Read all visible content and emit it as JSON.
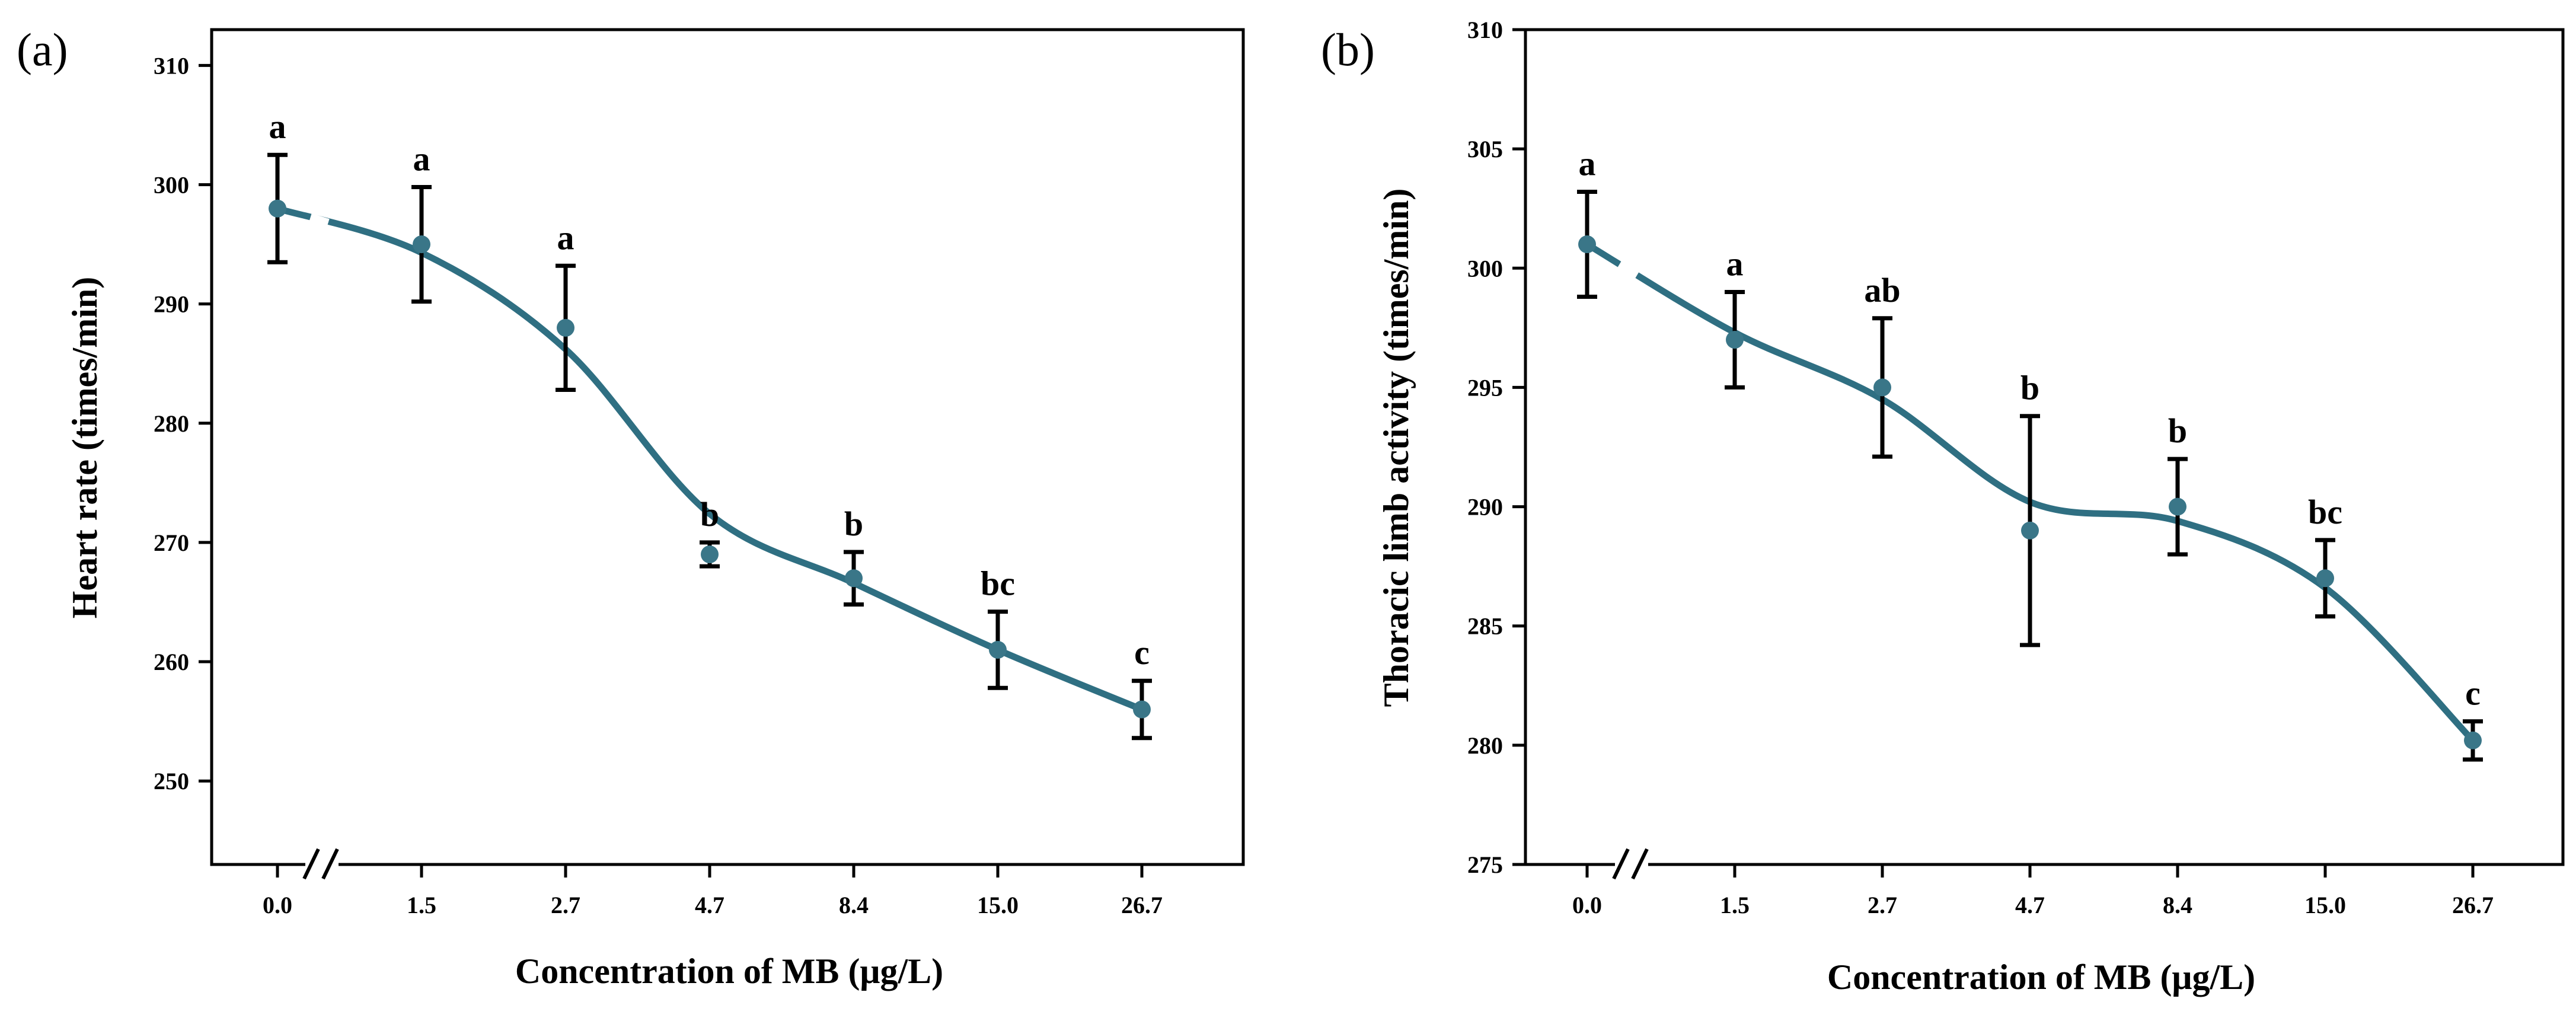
{
  "figure": {
    "panels": [
      {
        "id": "a",
        "label": "(a)"
      },
      {
        "id": "b",
        "label": "(b)"
      }
    ]
  },
  "chart_data": [
    {
      "type": "line",
      "panel_label": "(a)",
      "title": "",
      "xlabel": "Concentration of MB (μg/L)",
      "ylabel": "Heart rate (times/min)",
      "categories": [
        "0.0",
        "1.5",
        "2.7",
        "4.7",
        "8.4",
        "15.0",
        "26.7"
      ],
      "values": [
        298,
        295,
        288,
        269,
        267,
        261,
        256
      ],
      "errors": [
        4.5,
        4.8,
        5.2,
        1.0,
        2.2,
        3.2,
        2.4
      ],
      "significance": [
        "a",
        "a",
        "a",
        "b",
        "b",
        "bc",
        "c"
      ],
      "ylim": [
        243,
        313
      ],
      "yticks": [
        250,
        260,
        270,
        280,
        290,
        300,
        310
      ],
      "axis_break_x": true,
      "smoothed_fit": true,
      "fit_values": [
        298,
        294.3,
        286.2,
        272.4,
        266.6,
        261,
        256
      ],
      "series_color": "#2f6f82",
      "marker_color": "#3a7688"
    },
    {
      "type": "line",
      "panel_label": "(b)",
      "title": "",
      "xlabel": "Concentration of MB (μg/L)",
      "ylabel": "Thoracic limb activity (times/min)",
      "categories": [
        "0.0",
        "1.5",
        "2.7",
        "4.7",
        "8.4",
        "15.0",
        "26.7"
      ],
      "values": [
        301,
        297,
        295,
        289,
        290,
        287,
        280.2
      ],
      "errors": [
        2.2,
        2.0,
        2.9,
        4.8,
        2.0,
        1.6,
        0.8
      ],
      "significance": [
        "a",
        "a",
        "ab",
        "b",
        "b",
        "bc",
        "c"
      ],
      "ylim": [
        275,
        310
      ],
      "yticks": [
        275,
        280,
        285,
        290,
        295,
        300,
        305,
        310
      ],
      "axis_break_x": true,
      "smoothed_fit": true,
      "fit_values": [
        301,
        297.3,
        294.5,
        290.2,
        289.4,
        286.6,
        280.2
      ],
      "series_color": "#2f6f82",
      "marker_color": "#3a7688"
    }
  ]
}
